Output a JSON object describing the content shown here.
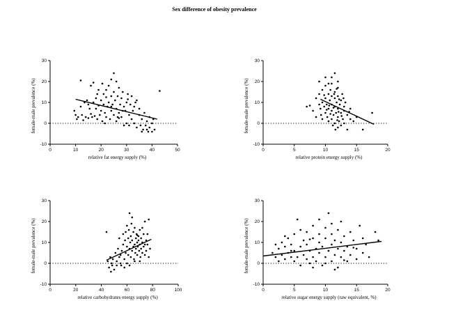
{
  "figure": {
    "title": "Sex difference of obesity prevalence"
  },
  "chart_data": [
    {
      "type": "scatter",
      "xlabel": "relative fat energy supply (%)",
      "ylabel": "female-male prevalence (%)",
      "xlim": [
        0,
        50
      ],
      "ylim": [
        -10,
        30
      ],
      "xticks": [
        0,
        10,
        20,
        30,
        40,
        50
      ],
      "yticks": [
        -10,
        0,
        10,
        20,
        30
      ],
      "zero_line": true,
      "fit": [
        [
          10,
          11.5
        ],
        [
          42,
          2
        ]
      ],
      "points": [
        [
          9.5,
          6
        ],
        [
          10,
          4
        ],
        [
          10.5,
          2
        ],
        [
          11,
          3
        ],
        [
          12,
          20.5
        ],
        [
          12,
          8
        ],
        [
          12.5,
          4
        ],
        [
          13,
          1.5
        ],
        [
          13.5,
          10
        ],
        [
          14,
          3
        ],
        [
          14.5,
          11
        ],
        [
          15,
          2.5
        ],
        [
          15.5,
          7
        ],
        [
          16,
          4.5
        ],
        [
          16,
          18
        ],
        [
          16.5,
          3
        ],
        [
          17,
          19.5
        ],
        [
          17,
          10
        ],
        [
          17.5,
          3.5
        ],
        [
          18,
          7
        ],
        [
          18,
          12
        ],
        [
          18.5,
          2
        ],
        [
          19,
          8.5
        ],
        [
          19,
          16
        ],
        [
          19.5,
          4
        ],
        [
          20,
          11
        ],
        [
          20,
          6
        ],
        [
          20.5,
          1
        ],
        [
          21,
          9
        ],
        [
          21,
          14
        ],
        [
          21.5,
          5
        ],
        [
          22,
          12.5
        ],
        [
          22,
          3
        ],
        [
          22.5,
          8
        ],
        [
          23,
          18
        ],
        [
          23,
          10
        ],
        [
          23.5,
          2
        ],
        [
          24,
          6
        ],
        [
          24,
          13
        ],
        [
          24.5,
          9
        ],
        [
          25,
          24
        ],
        [
          25,
          15
        ],
        [
          25,
          4
        ],
        [
          25.5,
          11
        ],
        [
          26,
          7
        ],
        [
          26,
          20
        ],
        [
          26,
          1
        ],
        [
          26.5,
          13
        ],
        [
          27,
          5
        ],
        [
          27,
          17
        ],
        [
          27.5,
          9
        ],
        [
          28,
          3
        ],
        [
          28,
          12
        ],
        [
          28.5,
          15
        ],
        [
          29,
          -1
        ],
        [
          29,
          8
        ],
        [
          29.5,
          6
        ],
        [
          30,
          10
        ],
        [
          30,
          0
        ],
        [
          30.5,
          14
        ],
        [
          31,
          4
        ],
        [
          31,
          -1
        ],
        [
          31.5,
          9
        ],
        [
          32,
          13
        ],
        [
          32,
          2
        ],
        [
          32.5,
          6
        ],
        [
          33,
          8
        ],
        [
          33,
          0
        ],
        [
          34,
          11
        ],
        [
          34,
          -2
        ],
        [
          35,
          4
        ],
        [
          35,
          7
        ],
        [
          36,
          -4
        ],
        [
          36,
          2
        ],
        [
          36.5,
          -3
        ],
        [
          37,
          5
        ],
        [
          37.5,
          -1
        ],
        [
          38,
          1
        ],
        [
          38.5,
          -4
        ],
        [
          39,
          3
        ],
        [
          39,
          -2
        ],
        [
          40,
          0
        ],
        [
          40,
          -4
        ],
        [
          40.5,
          2
        ],
        [
          41,
          -3
        ],
        [
          43,
          15.5
        ],
        [
          24,
          21
        ],
        [
          27,
          2.5
        ],
        [
          22,
          16
        ],
        [
          18.5,
          14
        ],
        [
          15,
          9
        ],
        [
          20.5,
          19
        ],
        [
          28.5,
          6
        ],
        [
          33.5,
          10
        ],
        [
          24,
          8
        ],
        [
          26.5,
          3
        ],
        [
          30.5,
          11.5
        ],
        [
          35.5,
          -1
        ],
        [
          38,
          -3
        ],
        [
          21.5,
          0
        ]
      ]
    },
    {
      "type": "scatter",
      "xlabel": "relative protein energy supply (%)",
      "ylabel": "female-male prevalence (%)",
      "xlim": [
        0,
        20
      ],
      "ylim": [
        -10,
        30
      ],
      "xticks": [
        0,
        5,
        10,
        15,
        20
      ],
      "yticks": [
        -10,
        0,
        10,
        20,
        30
      ],
      "zero_line": true,
      "fit": [
        [
          9.2,
          11.5
        ],
        [
          17.8,
          -0.5
        ]
      ],
      "points": [
        [
          7,
          8
        ],
        [
          7.5,
          8.5
        ],
        [
          8,
          6
        ],
        [
          8.5,
          3
        ],
        [
          8.5,
          12
        ],
        [
          9,
          9
        ],
        [
          9,
          14
        ],
        [
          9,
          20
        ],
        [
          9.2,
          7
        ],
        [
          9.5,
          10
        ],
        [
          9.5,
          2
        ],
        [
          9.5,
          16
        ],
        [
          9.8,
          8
        ],
        [
          10,
          12
        ],
        [
          10,
          5
        ],
        [
          10,
          18
        ],
        [
          10,
          22
        ],
        [
          10.2,
          9
        ],
        [
          10.3,
          3
        ],
        [
          10.5,
          14
        ],
        [
          10.5,
          7
        ],
        [
          10.5,
          1
        ],
        [
          10.7,
          11
        ],
        [
          10.8,
          16
        ],
        [
          11,
          6
        ],
        [
          11,
          9
        ],
        [
          11,
          13
        ],
        [
          11,
          19
        ],
        [
          11,
          2
        ],
        [
          11.2,
          -1
        ],
        [
          11.3,
          4
        ],
        [
          11.5,
          24
        ],
        [
          11.5,
          8
        ],
        [
          11.5,
          12
        ],
        [
          11.5,
          15
        ],
        [
          11.5,
          0
        ],
        [
          11.7,
          5
        ],
        [
          11.8,
          10
        ],
        [
          12,
          3
        ],
        [
          12,
          7
        ],
        [
          12,
          13
        ],
        [
          12,
          17
        ],
        [
          12,
          -2
        ],
        [
          12.2,
          1
        ],
        [
          12.3,
          9
        ],
        [
          12.5,
          5
        ],
        [
          12.5,
          11
        ],
        [
          12.5,
          -1
        ],
        [
          12.7,
          14
        ],
        [
          12.8,
          2
        ],
        [
          13,
          6
        ],
        [
          13,
          0
        ],
        [
          13,
          8
        ],
        [
          13.5,
          4
        ],
        [
          13.5,
          -3
        ],
        [
          14,
          2
        ],
        [
          14,
          7
        ],
        [
          14.5,
          1
        ],
        [
          15,
          3
        ],
        [
          16,
          -3
        ],
        [
          17.5,
          5
        ],
        [
          11,
          22
        ],
        [
          12,
          20
        ],
        [
          10.5,
          19
        ],
        [
          11.8,
          16.5
        ],
        [
          12.2,
          11.5
        ],
        [
          9.8,
          13.5
        ],
        [
          11.3,
          7.5
        ],
        [
          10.8,
          4.5
        ],
        [
          12.6,
          3.5
        ],
        [
          11.6,
          -3
        ],
        [
          13.2,
          10
        ],
        [
          12.1,
          5.5
        ],
        [
          10.2,
          6.5
        ],
        [
          11.4,
          14
        ],
        [
          9.3,
          4
        ],
        [
          12.9,
          12
        ],
        [
          10.6,
          8.5
        ],
        [
          13.8,
          5.5
        ],
        [
          11.9,
          1.5
        ]
      ]
    },
    {
      "type": "scatter",
      "xlabel": "relative carbohydrates energy supply (%)",
      "ylabel": "female-male prevalence (%)",
      "xlim": [
        0,
        100
      ],
      "ylim": [
        -10,
        30
      ],
      "xticks": [
        0,
        20,
        40,
        60,
        80,
        100
      ],
      "yticks": [
        -10,
        0,
        10,
        20,
        30
      ],
      "zero_line": true,
      "fit": [
        [
          44,
          1.5
        ],
        [
          79,
          11.5
        ]
      ],
      "points": [
        [
          44,
          15
        ],
        [
          45,
          1
        ],
        [
          46,
          -2
        ],
        [
          47,
          3
        ],
        [
          47.5,
          -4
        ],
        [
          48,
          0
        ],
        [
          48.5,
          -1
        ],
        [
          49,
          2
        ],
        [
          50,
          -3
        ],
        [
          51,
          5
        ],
        [
          52,
          1
        ],
        [
          52,
          -1
        ],
        [
          53,
          7
        ],
        [
          54,
          3
        ],
        [
          54,
          12
        ],
        [
          55,
          0
        ],
        [
          55.5,
          -1
        ],
        [
          56,
          6
        ],
        [
          57,
          9
        ],
        [
          57,
          14
        ],
        [
          58,
          2
        ],
        [
          58.5,
          11
        ],
        [
          59,
          5
        ],
        [
          59,
          15
        ],
        [
          60,
          8
        ],
        [
          60,
          0
        ],
        [
          61,
          12
        ],
        [
          61,
          4
        ],
        [
          61.5,
          16
        ],
        [
          62,
          7
        ],
        [
          62,
          24
        ],
        [
          62.5,
          10
        ],
        [
          63,
          3
        ],
        [
          63,
          13
        ],
        [
          63.5,
          19
        ],
        [
          64,
          6
        ],
        [
          64,
          11
        ],
        [
          65,
          8
        ],
        [
          65,
          15
        ],
        [
          65.5,
          2
        ],
        [
          66,
          9
        ],
        [
          66,
          17
        ],
        [
          66.5,
          5
        ],
        [
          67,
          12
        ],
        [
          67,
          7
        ],
        [
          67.5,
          14
        ],
        [
          68,
          10
        ],
        [
          68,
          4
        ],
        [
          68.5,
          8
        ],
        [
          69,
          11
        ],
        [
          69,
          13
        ],
        [
          69.5,
          6
        ],
        [
          70,
          9
        ],
        [
          70,
          16
        ],
        [
          70.5,
          3
        ],
        [
          71,
          12
        ],
        [
          71,
          7
        ],
        [
          72,
          10
        ],
        [
          72,
          5
        ],
        [
          73,
          8
        ],
        [
          73,
          14
        ],
        [
          74,
          20
        ],
        [
          74,
          4
        ],
        [
          75,
          11
        ],
        [
          75,
          6
        ],
        [
          76,
          9
        ],
        [
          77,
          21
        ],
        [
          77,
          3
        ],
        [
          78,
          7
        ],
        [
          64,
          22
        ],
        [
          60,
          18
        ],
        [
          66,
          1
        ],
        [
          58,
          -2
        ],
        [
          55,
          4
        ],
        [
          72,
          17
        ],
        [
          62,
          -1
        ],
        [
          68,
          13.5
        ],
        [
          70,
          1
        ],
        [
          74,
          9
        ],
        [
          76,
          14
        ]
      ]
    },
    {
      "type": "scatter",
      "xlabel": "relative sugar energy supply (raw equivalent, %)",
      "ylabel": "female-male prevalence (%)",
      "xlim": [
        0,
        20
      ],
      "ylim": [
        -10,
        30
      ],
      "xticks": [
        0,
        5,
        10,
        15,
        20
      ],
      "yticks": [
        -10,
        0,
        10,
        20,
        30
      ],
      "zero_line": true,
      "fit": [
        [
          0,
          3.5
        ],
        [
          19,
          10.5
        ]
      ],
      "points": [
        [
          1.5,
          5
        ],
        [
          2,
          3
        ],
        [
          2,
          9
        ],
        [
          2.5,
          1
        ],
        [
          2.5,
          7
        ],
        [
          3,
          4
        ],
        [
          3,
          10
        ],
        [
          3.5,
          2
        ],
        [
          3.5,
          8
        ],
        [
          4,
          5
        ],
        [
          4,
          12
        ],
        [
          4.5,
          3
        ],
        [
          4.5,
          9
        ],
        [
          5,
          1
        ],
        [
          5,
          6
        ],
        [
          5,
          14
        ],
        [
          5.5,
          3
        ],
        [
          5.5,
          21
        ],
        [
          6,
          8
        ],
        [
          6,
          -1
        ],
        [
          6.5,
          11
        ],
        [
          6.5,
          4
        ],
        [
          7,
          2
        ],
        [
          7,
          9
        ],
        [
          7,
          15
        ],
        [
          7.5,
          6
        ],
        [
          7.5,
          0
        ],
        [
          8,
          12
        ],
        [
          8,
          3
        ],
        [
          8,
          18
        ],
        [
          8.5,
          7
        ],
        [
          8.5,
          1
        ],
        [
          9,
          10
        ],
        [
          9,
          5
        ],
        [
          9,
          14
        ],
        [
          9.5,
          -1
        ],
        [
          9.5,
          8
        ],
        [
          10,
          3
        ],
        [
          10,
          12
        ],
        [
          10,
          17
        ],
        [
          10.5,
          6
        ],
        [
          10.5,
          24
        ],
        [
          11,
          9
        ],
        [
          11,
          1
        ],
        [
          11,
          14
        ],
        [
          11.5,
          4
        ],
        [
          11.5,
          11
        ],
        [
          12,
          7
        ],
        [
          12,
          -2
        ],
        [
          12,
          16
        ],
        [
          12.5,
          3
        ],
        [
          12.5,
          10
        ],
        [
          13,
          6
        ],
        [
          13,
          13
        ],
        [
          13.5,
          1
        ],
        [
          13.5,
          8
        ],
        [
          14,
          4
        ],
        [
          14,
          15
        ],
        [
          14.5,
          11
        ],
        [
          15,
          2
        ],
        [
          15,
          7
        ],
        [
          15.5,
          18
        ],
        [
          16,
          5
        ],
        [
          16,
          12
        ],
        [
          16.5,
          9
        ],
        [
          17,
          3
        ],
        [
          18,
          15
        ],
        [
          18.5,
          11
        ],
        [
          9,
          21
        ],
        [
          11,
          19
        ],
        [
          6,
          16
        ],
        [
          3.5,
          13
        ],
        [
          10,
          0
        ],
        [
          12.5,
          20
        ],
        [
          7.5,
          11.5
        ],
        [
          4.5,
          6
        ],
        [
          8,
          -2
        ],
        [
          13,
          1.5
        ],
        [
          11.5,
          -3
        ],
        [
          14.5,
          7.5
        ]
      ]
    }
  ]
}
